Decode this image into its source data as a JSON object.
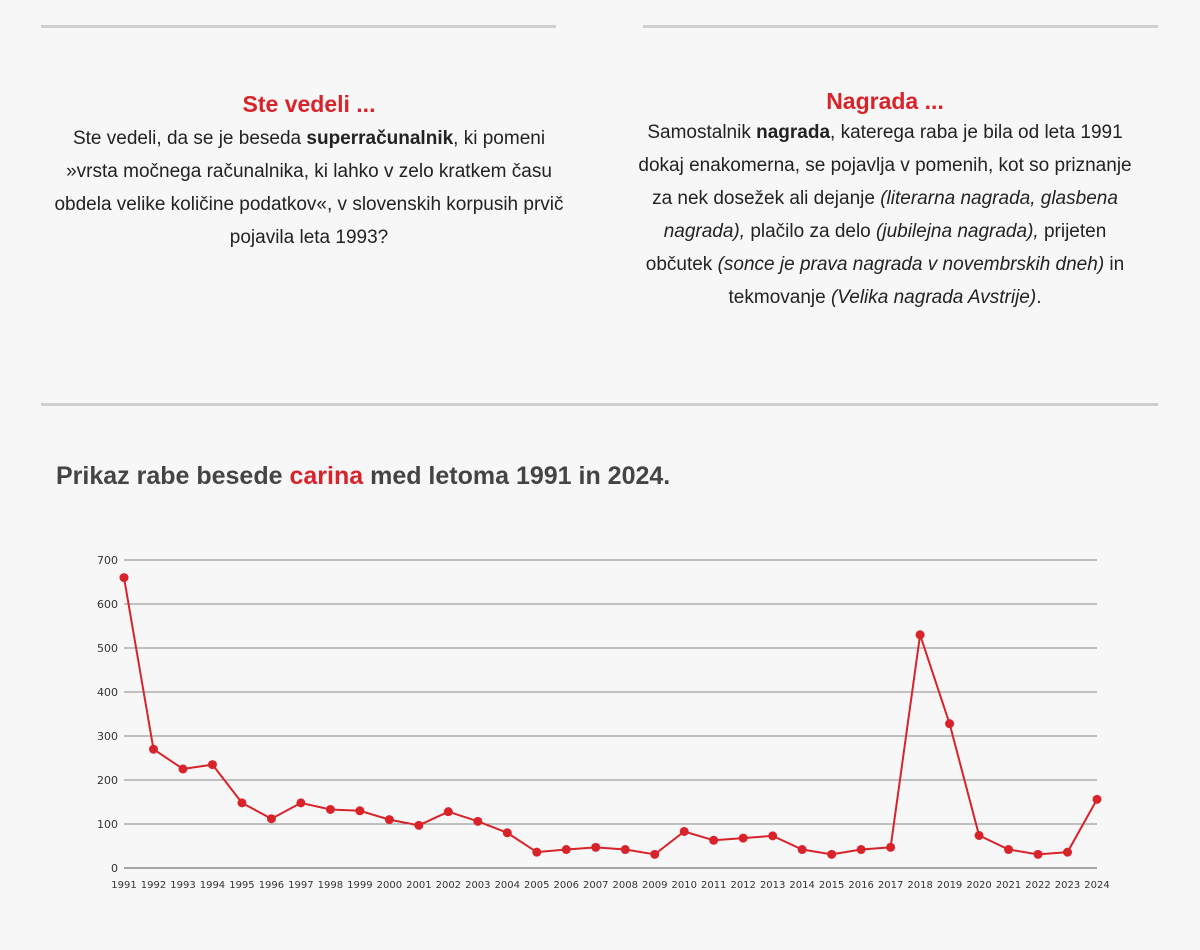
{
  "left_card": {
    "title": "Ste vedeli ...",
    "text_1": "Ste vedeli, da se je beseda ",
    "bold_1": "superračunalnik",
    "text_2": ", ki pomeni »vrsta močnega računalnika, ki lahko v zelo kratkem času obdela velike količine podatkov«, v slovenskih korpusih prvič pojavila leta 1993?"
  },
  "right_card": {
    "title": "Nagrada ...",
    "text_1": "Samostalnik ",
    "bold_1": "nagrada",
    "text_2": ", katerega raba je bila od leta 1991 dokaj enakomerna, se pojavlja v pomenih, kot so priznanje za nek dosežek ali dejanje ",
    "ital_1": "(literarna nagrada, glasbena nagrada),",
    "text_3": " plačilo za delo ",
    "ital_2": "(jubilejna nagrada),",
    "text_4": " prijeten občutek ",
    "ital_3": "(sonce je prava nagrada v novembrskih dneh)",
    "text_5": " in tekmovanje ",
    "ital_4": "(Velika nagrada Avstrije)",
    "text_6": "."
  },
  "heading": {
    "before": "Prikaz rabe besede ",
    "word": "carina",
    "after": " med letoma 1991 in 2024."
  },
  "chart_data": {
    "type": "line",
    "title": "Prikaz rabe besede carina med letoma 1991 in 2024.",
    "xlabel": "",
    "ylabel": "",
    "ylim": [
      0,
      700
    ],
    "yticks": [
      0,
      100,
      200,
      300,
      400,
      500,
      600,
      700
    ],
    "grid": true,
    "categories": [
      "1991",
      "1992",
      "1993",
      "1994",
      "1995",
      "1996",
      "1997",
      "1998",
      "1999",
      "2000",
      "2001",
      "2002",
      "2003",
      "2004",
      "2005",
      "2006",
      "2007",
      "2008",
      "2009",
      "2010",
      "2011",
      "2012",
      "2013",
      "2014",
      "2015",
      "2016",
      "2017",
      "2018",
      "2019",
      "2020",
      "2021",
      "2022",
      "2023",
      "2024"
    ],
    "series": [
      {
        "name": "carina",
        "color": "#d8232a",
        "values": [
          660,
          270,
          225,
          235,
          148,
          112,
          148,
          133,
          130,
          110,
          97,
          128,
          106,
          80,
          36,
          42,
          47,
          42,
          31,
          83,
          63,
          68,
          73,
          42,
          31,
          42,
          47,
          530,
          328,
          74,
          42,
          31,
          36,
          156
        ]
      }
    ]
  },
  "colors": {
    "accent": "#d8232a",
    "rule": "#cfcfcf",
    "background": "#f7f7f7"
  }
}
